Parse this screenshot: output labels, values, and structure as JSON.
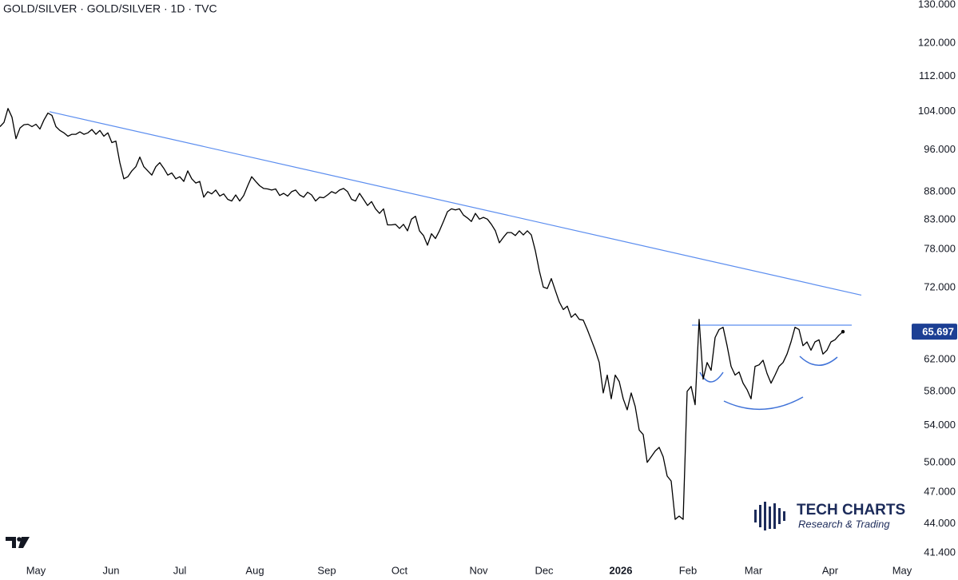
{
  "chart_data": {
    "type": "line",
    "title": "GOLD/SILVER · GOLD/SILVER · 1D · TVC",
    "yscale": "log",
    "ylim": [
      41.4,
      130
    ],
    "yticks": [
      {
        "value": 130,
        "label": "130.000"
      },
      {
        "value": 120,
        "label": "120.000"
      },
      {
        "value": 112,
        "label": "112.000"
      },
      {
        "value": 104,
        "label": "104.000"
      },
      {
        "value": 96,
        "label": "96.000"
      },
      {
        "value": 88,
        "label": "88.000"
      },
      {
        "value": 83,
        "label": "83.000"
      },
      {
        "value": 78,
        "label": "78.000"
      },
      {
        "value": 72,
        "label": "72.000"
      },
      {
        "value": 62,
        "label": "62.000"
      },
      {
        "value": 58,
        "label": "58.000"
      },
      {
        "value": 54,
        "label": "54.000"
      },
      {
        "value": 50,
        "label": "50.000"
      },
      {
        "value": 47,
        "label": "47.000"
      },
      {
        "value": 44,
        "label": "44.000"
      },
      {
        "value": 41.4,
        "label": "41.400"
      }
    ],
    "xticks": [
      "May",
      "Jun",
      "Jul",
      "Aug",
      "Sep",
      "Oct",
      "Nov",
      "Dec",
      "2026",
      "Feb",
      "Mar",
      "Apr",
      "May"
    ],
    "grid": false,
    "series": [
      {
        "color": "#000000",
        "values": [
          100.8,
          101.7,
          104.7,
          102.8,
          98.3,
          100.5,
          101.2,
          101.3,
          100.8,
          101.3,
          100.3,
          102.2,
          103.7,
          103.2,
          100.8,
          100.0,
          99.5,
          98.8,
          99.2,
          99.2,
          99.7,
          99.2,
          99.5,
          100.2,
          99.2,
          100.0,
          98.8,
          99.5,
          97.5,
          97.8,
          93.5,
          90.4,
          90.8,
          91.9,
          92.7,
          94.6,
          92.7,
          91.9,
          91.1,
          92.7,
          93.5,
          92.4,
          91.1,
          91.5,
          90.4,
          90.8,
          89.9,
          91.9,
          90.4,
          89.6,
          89.9,
          87.0,
          88.0,
          87.6,
          88.3,
          87.2,
          87.6,
          86.6,
          86.3,
          87.4,
          86.3,
          87.3,
          89.1,
          90.8,
          89.9,
          89.1,
          88.6,
          88.5,
          88.3,
          88.5,
          87.3,
          87.7,
          87.2,
          88.0,
          88.3,
          87.4,
          87.0,
          87.9,
          87.4,
          86.3,
          87.0,
          86.9,
          87.4,
          88.0,
          87.7,
          88.3,
          88.6,
          88.0,
          86.6,
          86.3,
          87.7,
          86.6,
          85.5,
          86.2,
          84.9,
          84.1,
          84.9,
          82.1,
          82.1,
          82.2,
          81.5,
          82.2,
          81.1,
          83.1,
          83.6,
          81.1,
          80.3,
          78.7,
          80.6,
          79.8,
          81.1,
          82.7,
          84.4,
          84.9,
          84.7,
          84.9,
          83.8,
          83.3,
          82.7,
          84.1,
          83.1,
          83.4,
          83.1,
          82.2,
          81.1,
          79.1,
          80.0,
          80.8,
          80.8,
          80.3,
          81.1,
          80.4,
          81.1,
          80.4,
          77.8,
          74.6,
          72.1,
          71.9,
          73.4,
          71.6,
          69.9,
          68.8,
          69.3,
          67.7,
          68.2,
          67.4,
          67.3,
          66.0,
          64.6,
          63.2,
          61.6,
          57.8,
          60.0,
          57.1,
          60.0,
          59.2,
          57.1,
          55.8,
          57.8,
          56.2,
          53.5,
          53.0,
          50.0,
          50.6,
          51.2,
          51.6,
          50.6,
          48.6,
          48.1,
          44.4,
          44.7,
          44.4,
          58.0,
          58.6,
          56.4,
          67.4,
          59.5,
          61.6,
          60.6,
          64.9,
          66.0,
          66.3,
          63.8,
          61.1,
          60.0,
          60.4,
          59.0,
          58.2,
          57.1,
          61.1,
          61.3,
          61.9,
          60.2,
          59.0,
          60.0,
          61.1,
          61.6,
          62.7,
          64.3,
          66.3,
          66.0,
          63.8,
          64.3,
          63.2,
          64.3,
          64.6,
          62.7,
          63.2,
          64.3,
          64.6,
          65.2,
          65.697
        ]
      }
    ],
    "trendlines": [
      {
        "color": "#5b8def",
        "values": [
          104,
          70.9
        ]
      },
      {
        "color": "#5b8def",
        "values": [
          66.6,
          66.6
        ]
      }
    ],
    "last_label_color": "#1c3f94",
    "watermark": [
      "TECH CHARTS",
      "Research & Trading"
    ]
  }
}
